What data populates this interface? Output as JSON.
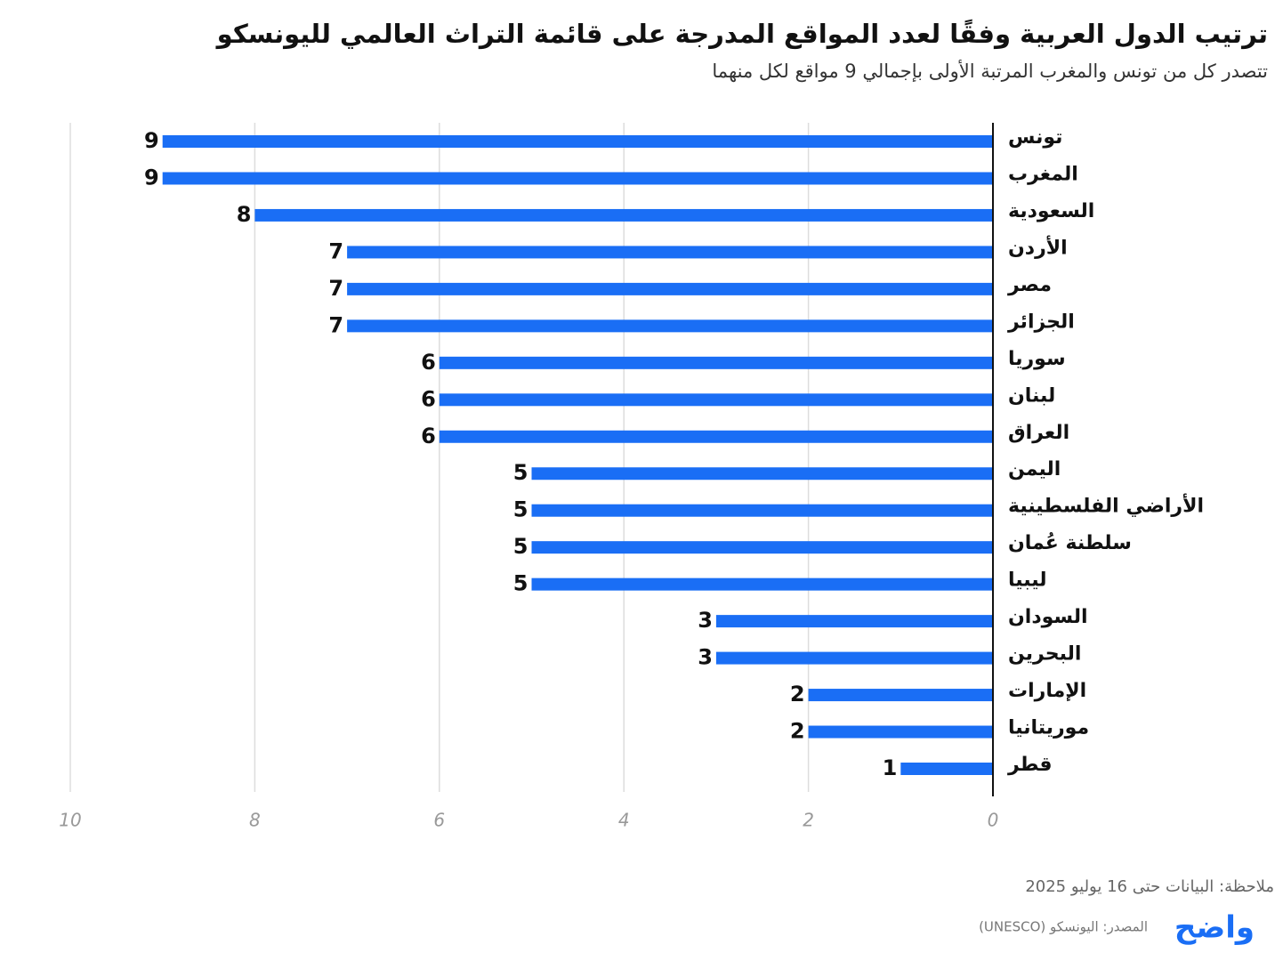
{
  "chart_data": {
    "type": "bar",
    "orientation": "horizontal",
    "title": "ترتيب الدول العربية وفقًا لعدد المواقع المدرجة على قائمة التراث العالمي لليونسكو",
    "subtitle": "تتصدر كل من تونس والمغرب المرتبة الأولى بإجمالي 9 مواقع لكل منهما",
    "categories": [
      "تونس",
      "المغرب",
      "السعودية",
      "الأردن",
      "مصر",
      "الجزائر",
      "سوريا",
      "لبنان",
      "العراق",
      "اليمن",
      "الأراضي الفلسطينية",
      "سلطنة عُمان",
      "ليبيا",
      "السودان",
      "البحرين",
      "الإمارات",
      "موريتانيا",
      "قطر"
    ],
    "values": [
      9,
      9,
      8,
      7,
      7,
      7,
      6,
      6,
      6,
      5,
      5,
      5,
      5,
      3,
      3,
      2,
      2,
      1
    ],
    "color": "#1a6ef5",
    "xlim": [
      0,
      10
    ],
    "xticks": [
      0,
      2,
      4,
      6,
      8,
      10
    ],
    "x_reversed": true,
    "grid": true,
    "note": "ملاحظة: البيانات حتى 16 يوليو 2025",
    "source": "المصدر: اليونسكو (UNESCO)",
    "logo": "واضح"
  }
}
